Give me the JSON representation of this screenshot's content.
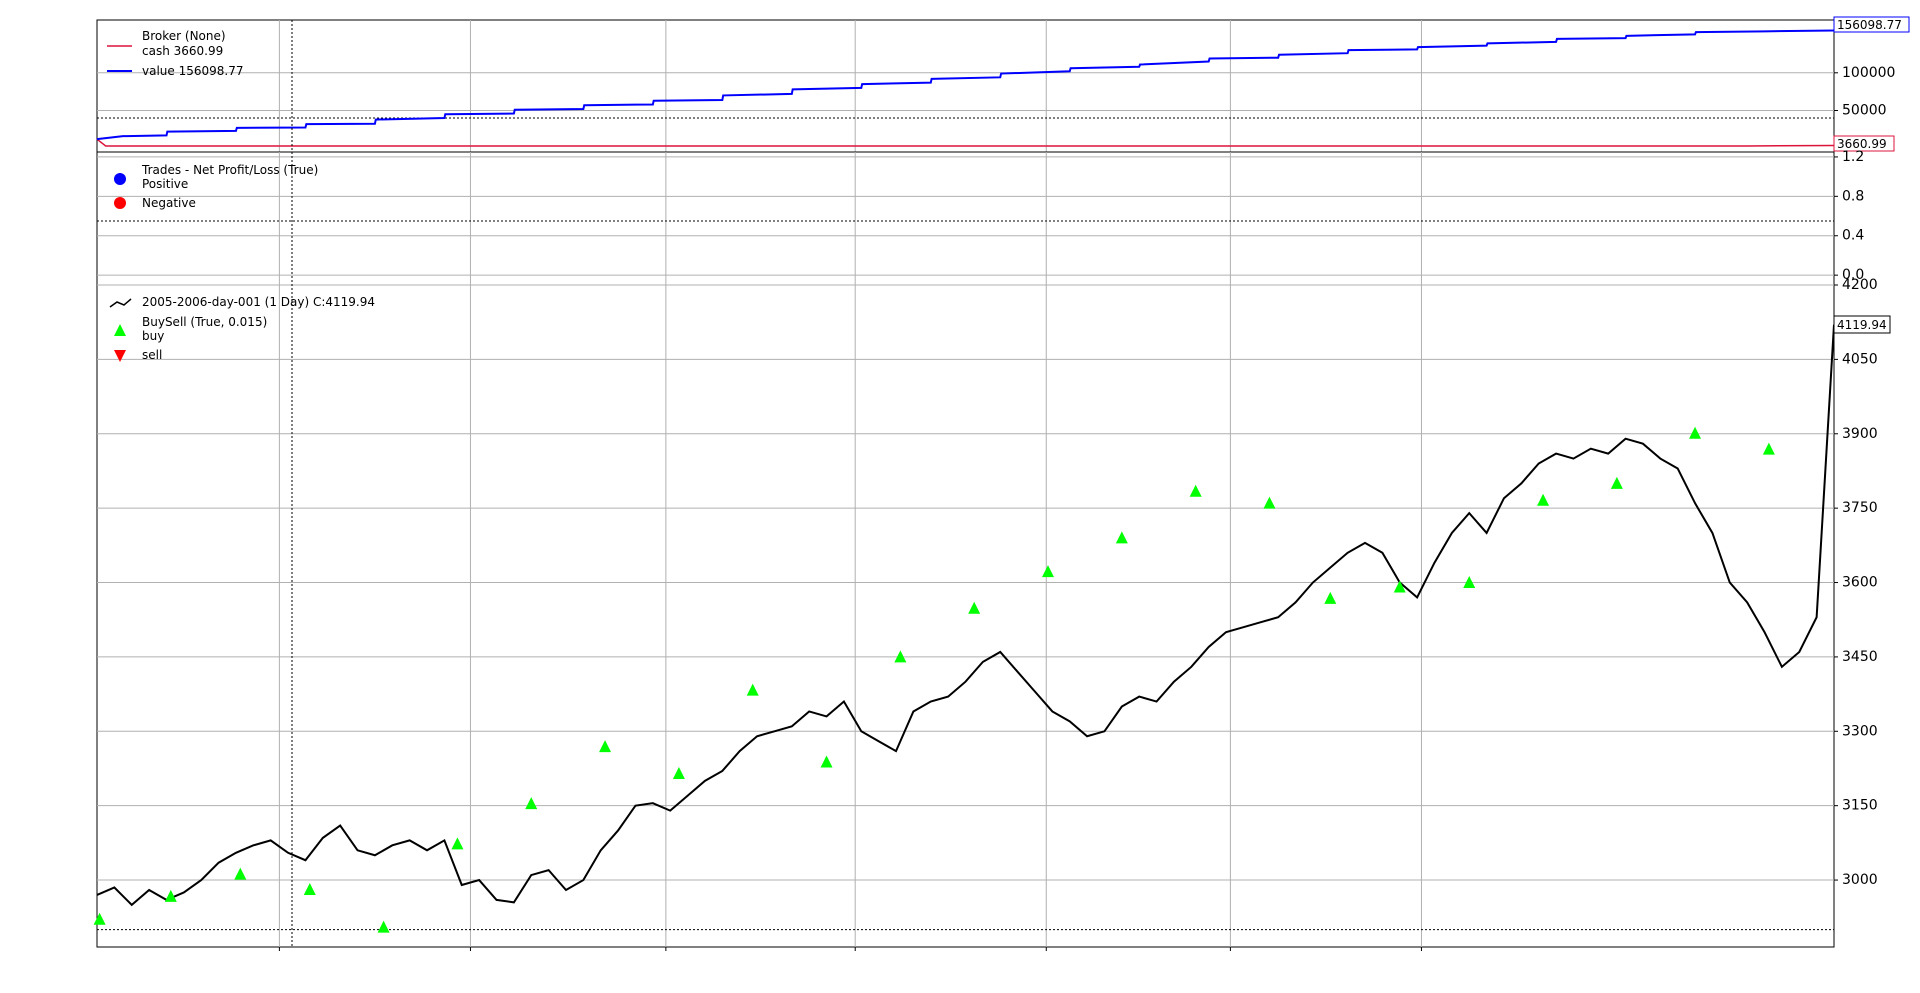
{
  "colors": {
    "cash": "#dc143c",
    "value": "#0000ff",
    "price": "#000000",
    "buy": "#00ff00",
    "sell": "#ff0000",
    "positive": "#0000ff",
    "negative": "#ff0000",
    "grid": "#b0b0b0"
  },
  "broker_legend": {
    "title": "Broker (None)",
    "cash_label": "cash 3660.99",
    "value_label": "value 156098.77"
  },
  "trades_legend": {
    "title": "Trades - Net Profit/Loss (True)",
    "positive_label": "Positive",
    "negative_label": "Negative"
  },
  "price_legend": {
    "data_label": "2005-2006-day-001 (1 Day) C:4119.94",
    "buysell_title": "BuySell (True, 0.015)",
    "buy_label": "buy",
    "sell_label": "sell"
  },
  "chart_data": [
    {
      "type": "line",
      "panel": "broker",
      "grid": true,
      "legend_position": "top-left",
      "yticks": [
        "50000",
        "100000"
      ],
      "ylim": [
        -5000,
        170000
      ],
      "reference_line": 40000,
      "last_value_tags": [
        "156098.77",
        "3660.99"
      ],
      "series": [
        {
          "name": "cash 3660.99",
          "x": [
            0,
            10,
            100,
            200,
            300,
            400,
            500,
            600,
            700,
            800,
            900,
            1000,
            1100,
            1200,
            1300,
            1400,
            1500,
            1600,
            1700,
            1800,
            1900,
            2000
          ],
          "values": [
            12000,
            3000,
            3000,
            3000,
            3000,
            3000,
            3000,
            3000,
            3000,
            3000,
            3000,
            3000,
            3000,
            3000,
            3000,
            3000,
            3000,
            3000,
            3000,
            3000,
            3000,
            3660.99
          ]
        },
        {
          "name": "value 156098.77",
          "x": [
            0,
            30,
            80,
            81,
            160,
            161,
            240,
            241,
            320,
            321,
            400,
            401,
            480,
            481,
            560,
            561,
            640,
            641,
            720,
            721,
            800,
            801,
            880,
            881,
            960,
            961,
            1040,
            1041,
            1120,
            1121,
            1200,
            1201,
            1280,
            1281,
            1360,
            1361,
            1440,
            1441,
            1520,
            1521,
            1600,
            1601,
            1680,
            1681,
            1760,
            1761,
            1840,
            1841,
            1920,
            2000
          ],
          "values": [
            12000,
            16000,
            17000,
            22000,
            23000,
            27000,
            27500,
            32000,
            32500,
            38000,
            40000,
            45000,
            46000,
            51000,
            52000,
            57000,
            58000,
            63000,
            64000,
            70000,
            72000,
            78000,
            80000,
            85000,
            87000,
            92000,
            94000,
            99000,
            102000,
            106000,
            108000,
            111000,
            115000,
            119000,
            120000,
            124000,
            126000,
            130000,
            131000,
            134000,
            136000,
            139000,
            141000,
            145000,
            146000,
            149000,
            151000,
            154000,
            155000,
            156098.77
          ]
        }
      ]
    },
    {
      "type": "scatter",
      "panel": "trades",
      "grid": true,
      "legend_position": "top-left",
      "yticks": [
        "0.0",
        "0.4",
        "0.8",
        "1.2"
      ],
      "ylim": [
        -0.1,
        1.25
      ],
      "reference_line": 0.55,
      "series": [
        {
          "name": "Positive",
          "x": [],
          "values": []
        },
        {
          "name": "Negative",
          "x": [],
          "values": []
        }
      ]
    },
    {
      "type": "line",
      "panel": "price",
      "grid": true,
      "legend_position": "top-left",
      "yticks": [
        "3000",
        "3150",
        "3300",
        "3450",
        "3600",
        "3750",
        "3900",
        "4050",
        "4200"
      ],
      "ylim": [
        2865,
        4200
      ],
      "reference_line": 2900,
      "last_value_tag": "4119.94",
      "series": [
        {
          "name": "2005-2006-day-001 (1 Day) C:4119.94",
          "x": [
            0,
            20,
            40,
            60,
            80,
            100,
            120,
            140,
            160,
            180,
            200,
            220,
            240,
            260,
            280,
            300,
            320,
            340,
            360,
            380,
            400,
            420,
            440,
            460,
            480,
            500,
            520,
            540,
            560,
            580,
            600,
            620,
            640,
            660,
            680,
            700,
            720,
            740,
            760,
            780,
            800,
            820,
            840,
            860,
            880,
            900,
            920,
            940,
            960,
            980,
            1000,
            1020,
            1040,
            1060,
            1080,
            1100,
            1120,
            1140,
            1160,
            1180,
            1200,
            1220,
            1240,
            1260,
            1280,
            1300,
            1320,
            1340,
            1360,
            1380,
            1400,
            1420,
            1440,
            1460,
            1480,
            1500,
            1520,
            1540,
            1560,
            1580,
            1600,
            1620,
            1640,
            1660,
            1680,
            1700,
            1720,
            1740,
            1760,
            1780,
            1800,
            1820,
            1840,
            1860,
            1880,
            1900,
            1920,
            1940,
            1960,
            1980,
            2000
          ],
          "values": [
            2970,
            2985,
            2950,
            2980,
            2960,
            2975,
            3000,
            3035,
            3055,
            3070,
            3080,
            3055,
            3040,
            3085,
            3110,
            3060,
            3050,
            3070,
            3080,
            3060,
            3080,
            2990,
            3000,
            2960,
            2955,
            3010,
            3020,
            2980,
            3000,
            3060,
            3100,
            3150,
            3155,
            3140,
            3170,
            3200,
            3220,
            3260,
            3290,
            3300,
            3310,
            3340,
            3330,
            3360,
            3300,
            3280,
            3260,
            3340,
            3360,
            3370,
            3400,
            3440,
            3460,
            3420,
            3380,
            3340,
            3320,
            3290,
            3300,
            3350,
            3370,
            3360,
            3400,
            3430,
            3470,
            3500,
            3510,
            3520,
            3530,
            3560,
            3600,
            3630,
            3660,
            3680,
            3660,
            3600,
            3570,
            3640,
            3700,
            3740,
            3700,
            3770,
            3800,
            3840,
            3860,
            3850,
            3870,
            3860,
            3890,
            3880,
            3850,
            3830,
            3760,
            3700,
            3600,
            3560,
            3500,
            3430,
            3460,
            3530,
            4119.94
          ]
        }
      ],
      "markers": {
        "buy": {
          "x": [
            3,
            85,
            165,
            245,
            330,
            415,
            500,
            585,
            670,
            755,
            840,
            925,
            1010,
            1095,
            1180,
            1265,
            1350,
            1420,
            1500,
            1580,
            1665,
            1750,
            1840,
            1925
          ],
          "values": [
            2920,
            2966,
            3011,
            2980,
            2904,
            3072,
            3153,
            3268,
            3214,
            3382,
            3237,
            3449,
            3547,
            3621,
            3689,
            3783,
            3759,
            3567,
            3590,
            3599,
            3765,
            3799,
            3900,
            3868
          ]
        },
        "sell": {
          "x": [],
          "values": []
        }
      }
    }
  ]
}
